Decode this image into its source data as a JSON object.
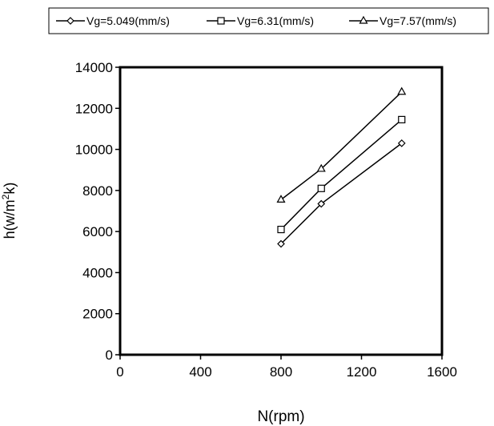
{
  "chart_data": {
    "type": "line",
    "xlabel": "N(rpm)",
    "ylabel": {
      "prefix": "h(w/m",
      "sup": "2",
      "suffix": "k)"
    },
    "xlim": [
      0,
      1600
    ],
    "ylim": [
      0,
      14000
    ],
    "x_ticks": [
      "0",
      "400",
      "800",
      "1200",
      "1600"
    ],
    "y_ticks": [
      "0",
      "2000",
      "4000",
      "6000",
      "8000",
      "10000",
      "12000",
      "14000"
    ],
    "grid": false,
    "legend_position": "top",
    "series": [
      {
        "name": "Vg=5.049(mm/s)",
        "marker": "diamond",
        "x": [
          800,
          1000,
          1400
        ],
        "y": [
          5400,
          7350,
          10300
        ]
      },
      {
        "name": "Vg=6.31(mm/s)",
        "marker": "square",
        "x": [
          800,
          1000,
          1400
        ],
        "y": [
          6100,
          8100,
          11450
        ]
      },
      {
        "name": "Vg=7.57(mm/s)",
        "marker": "triangle",
        "x": [
          800,
          1000,
          1400
        ],
        "y": [
          7550,
          9050,
          12800
        ]
      }
    ]
  }
}
